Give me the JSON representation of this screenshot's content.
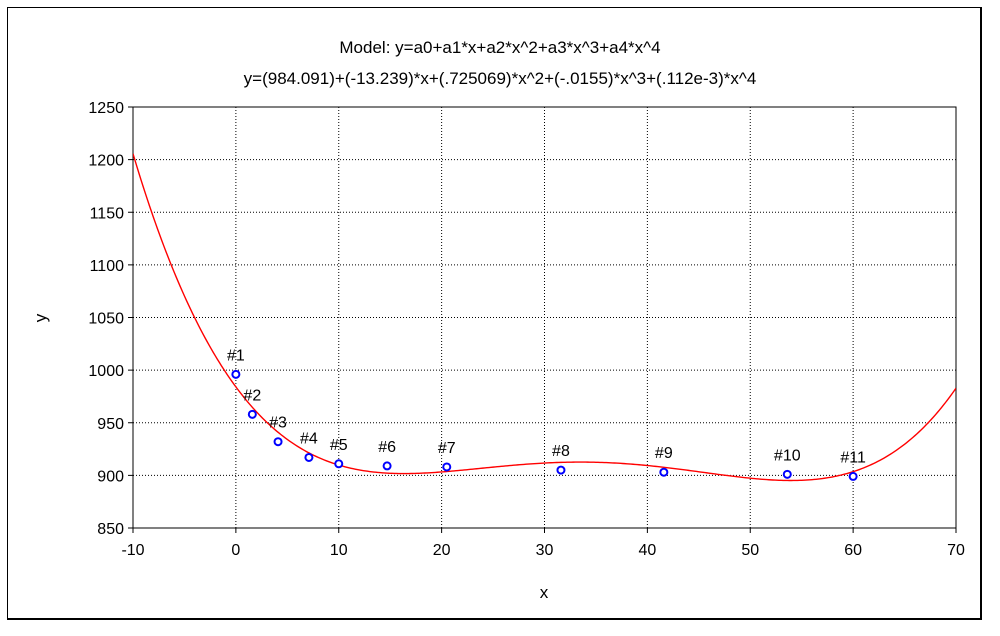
{
  "titles": {
    "model": "Model: y=a0+a1*x+a2*x^2+a3*x^3+a4*x^4",
    "equation": "y=(984.091)+(-13.239)*x+(.725069)*x^2+(-.0155)*x^3+(.112e-3)*x^4"
  },
  "chart_data": {
    "type": "scatter",
    "xlabel": "x",
    "ylabel": "y",
    "xlim": [
      -10,
      70
    ],
    "ylim": [
      850,
      1250
    ],
    "grid": true,
    "x_ticks": [
      "-10",
      "0",
      "10",
      "20",
      "30",
      "40",
      "50",
      "60",
      "70"
    ],
    "y_ticks": [
      "850",
      "900",
      "950",
      "1000",
      "1050",
      "1100",
      "1150",
      "1200",
      "1250"
    ],
    "points": [
      {
        "label": "#1",
        "x": 0,
        "y": 996
      },
      {
        "label": "#2",
        "x": 1.6,
        "y": 958
      },
      {
        "label": "#3",
        "x": 4.1,
        "y": 932
      },
      {
        "label": "#4",
        "x": 7.1,
        "y": 917
      },
      {
        "label": "#5",
        "x": 10,
        "y": 911
      },
      {
        "label": "#6",
        "x": 14.7,
        "y": 909
      },
      {
        "label": "#7",
        "x": 20.5,
        "y": 908
      },
      {
        "label": "#8",
        "x": 31.6,
        "y": 905
      },
      {
        "label": "#9",
        "x": 41.6,
        "y": 903
      },
      {
        "label": "#10",
        "x": 53.6,
        "y": 901
      },
      {
        "label": "#11",
        "x": 60,
        "y": 899
      }
    ],
    "fit": {
      "type": "polynomial",
      "coefficients": [
        984.091,
        -13.239,
        0.725069,
        -0.0155,
        0.000112
      ],
      "color": "#ff0000"
    },
    "marker_color": "#0000ff"
  }
}
